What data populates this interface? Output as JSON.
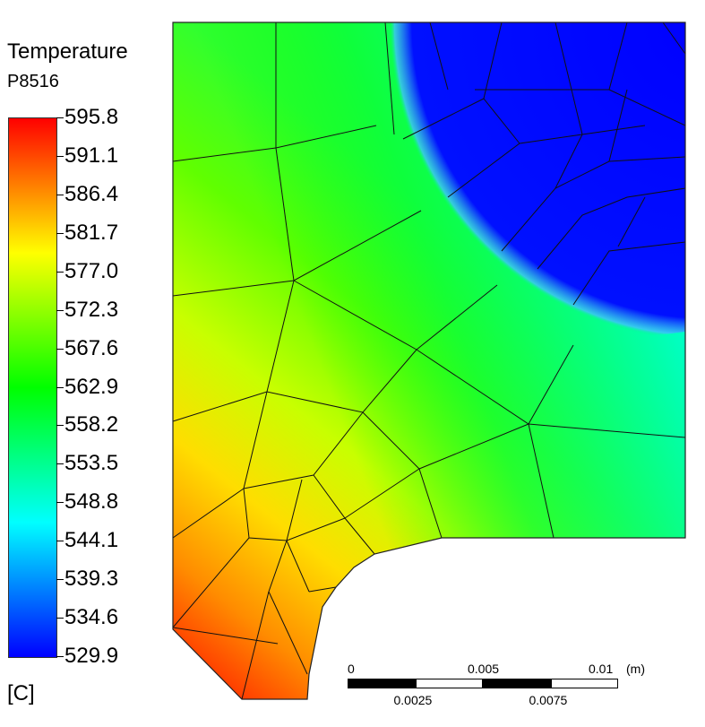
{
  "legend": {
    "title": "Temperature",
    "subtitle": "P8516",
    "unit": "[C]",
    "tick_labels": [
      "595.8",
      "591.1",
      "586.4",
      "581.7",
      "577.0",
      "572.3",
      "567.6",
      "562.9",
      "558.2",
      "553.5",
      "548.8",
      "544.1",
      "539.3",
      "534.6",
      "529.9"
    ],
    "colors": [
      "#ff0000",
      "#ff5500",
      "#ffaa00",
      "#ffff00",
      "#aaff00",
      "#55ff00",
      "#00ff00",
      "#00ff55",
      "#00ffaa",
      "#00ffff",
      "#00aaff",
      "#0055ff",
      "#0000ff"
    ]
  },
  "scale_bar": {
    "top_labels": [
      "0",
      "0.005",
      "0.01"
    ],
    "unit": "(m)",
    "bottom_labels": [
      "0.0025",
      "0.0075"
    ]
  },
  "chart_data": {
    "type": "heatmap",
    "title": "Temperature",
    "subtitle": "P8516",
    "unit": "C",
    "range": [
      529.9,
      595.8
    ],
    "colorbar_ticks": [
      595.8,
      591.1,
      586.4,
      581.7,
      577.0,
      572.3,
      567.6,
      562.9,
      558.2,
      553.5,
      548.8,
      544.1,
      539.3,
      534.6,
      529.9
    ],
    "scale_bar_m": [
      0,
      0.0025,
      0.005,
      0.0075,
      0.01
    ]
  }
}
